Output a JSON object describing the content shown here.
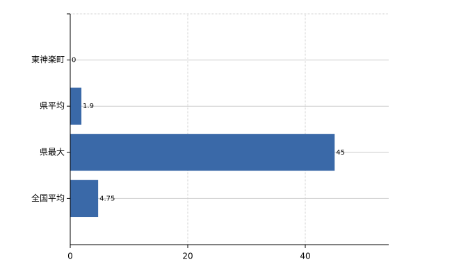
{
  "chart_data": {
    "type": "hbar",
    "categories": [
      "東神楽町",
      "県平均",
      "県最大",
      "全国平均"
    ],
    "values": [
      0,
      1.9,
      45,
      4.75
    ],
    "color": "#3a69a8",
    "xlim": [
      0,
      54.2
    ],
    "xticks": [
      0,
      20,
      40
    ],
    "grid": true
  }
}
